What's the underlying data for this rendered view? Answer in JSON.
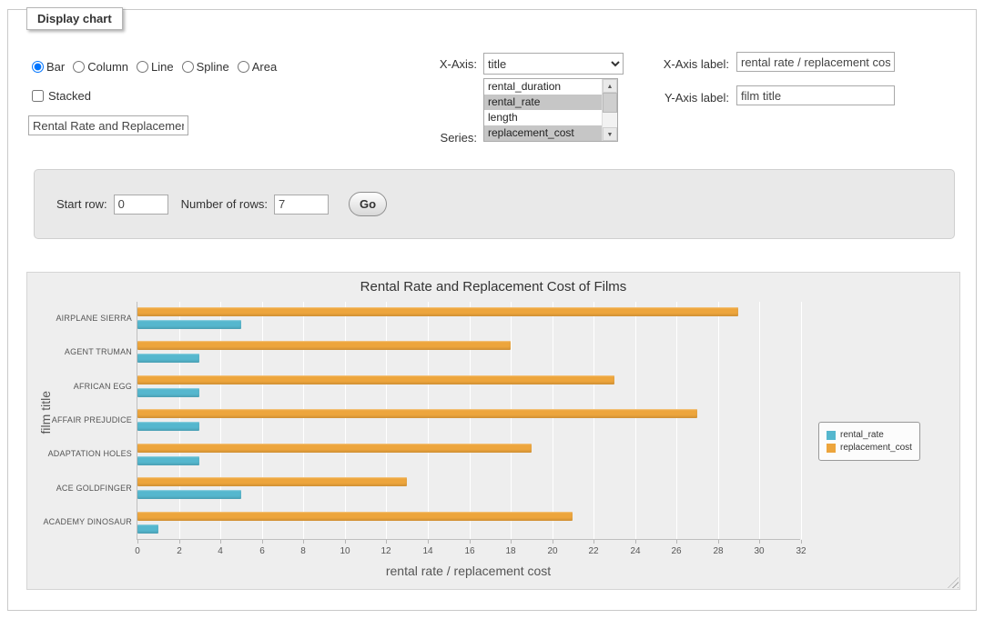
{
  "panel": {
    "legend": "Display chart"
  },
  "chart_type": {
    "options": [
      {
        "label": "Bar",
        "checked": true
      },
      {
        "label": "Column",
        "checked": false
      },
      {
        "label": "Line",
        "checked": false
      },
      {
        "label": "Spline",
        "checked": false
      },
      {
        "label": "Area",
        "checked": false
      }
    ]
  },
  "stacked": {
    "label": "Stacked",
    "checked": false
  },
  "title_input": {
    "value": "Rental Rate and Replacement Cost of Films"
  },
  "xaxis_select": {
    "label": "X-Axis:",
    "selected": "title"
  },
  "series_list": {
    "label": "Series:",
    "options": [
      {
        "label": "rental_duration",
        "selected": false
      },
      {
        "label": "rental_rate",
        "selected": true
      },
      {
        "label": "length",
        "selected": false
      },
      {
        "label": "replacement_cost",
        "selected": true
      }
    ]
  },
  "xaxis_label": {
    "label": "X-Axis label:",
    "value": "rental rate / replacement cost"
  },
  "yaxis_label": {
    "label": "Y-Axis label:",
    "value": "film title"
  },
  "rows": {
    "start_label": "Start row:",
    "start_value": "0",
    "count_label": "Number of rows:",
    "count_value": "7",
    "go_label": "Go"
  },
  "chart_data": {
    "type": "bar",
    "title": "Rental Rate and Replacement Cost of Films",
    "categories": [
      "AIRPLANE SIERRA",
      "AGENT TRUMAN",
      "AFRICAN EGG",
      "AFFAIR PREJUDICE",
      "ADAPTATION HOLES",
      "ACE GOLDFINGER",
      "ACADEMY DINOSAUR"
    ],
    "series": [
      {
        "name": "replacement_cost",
        "color": "#eda53c",
        "values": [
          28.99,
          17.99,
          22.99,
          26.99,
          18.99,
          12.99,
          20.99
        ]
      },
      {
        "name": "rental_rate",
        "color": "#55b7ce",
        "values": [
          4.99,
          2.99,
          2.99,
          2.99,
          2.99,
          4.99,
          0.99
        ]
      }
    ],
    "legend_order": [
      "rental_rate",
      "replacement_cost"
    ],
    "xlabel": "rental rate / replacement cost",
    "ylabel": "film title",
    "xlim": [
      0,
      32
    ],
    "tick_interval": 2,
    "grid": true,
    "legend_position": "right"
  }
}
